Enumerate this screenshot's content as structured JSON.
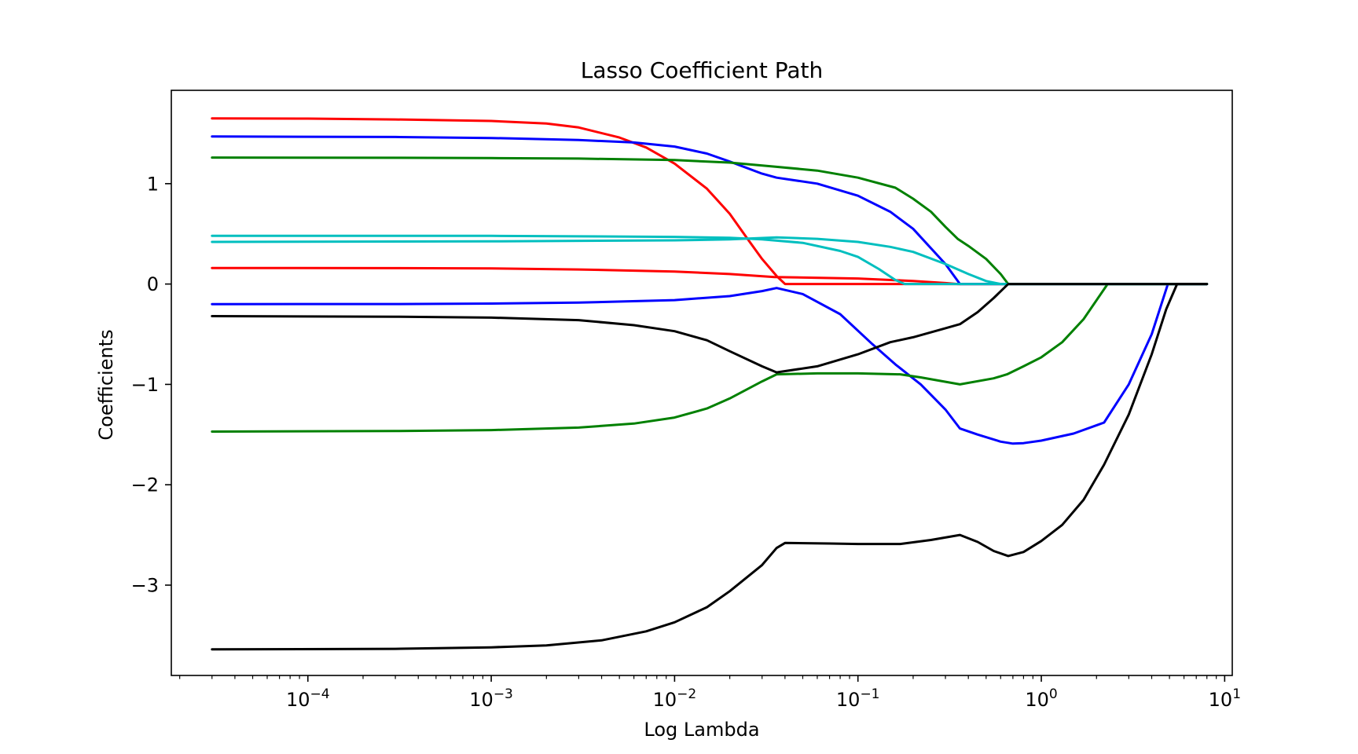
{
  "chart_data": {
    "type": "line",
    "title": "Lasso Coefficient Path",
    "xlabel": "Log Lambda",
    "ylabel": "Coefficients",
    "xscale": "log",
    "xlim": [
      1.8e-05,
      11
    ],
    "ylim": [
      -3.9,
      1.93
    ],
    "grid": false,
    "legend": "none",
    "xticks": [
      {
        "value": 0.0001,
        "base": "10",
        "exp": "−4"
      },
      {
        "value": 0.001,
        "base": "10",
        "exp": "−3"
      },
      {
        "value": 0.01,
        "base": "10",
        "exp": "−2"
      },
      {
        "value": 0.1,
        "base": "10",
        "exp": "−1"
      },
      {
        "value": 1,
        "base": "10",
        "exp": "0"
      },
      {
        "value": 10,
        "base": "10",
        "exp": "1"
      }
    ],
    "yticks": [
      {
        "value": 1,
        "label": "1"
      },
      {
        "value": 0,
        "label": "0"
      },
      {
        "value": -1,
        "label": "−1"
      },
      {
        "value": -2,
        "label": "−2"
      },
      {
        "value": -3,
        "label": "−3"
      }
    ],
    "series": [
      {
        "color": "#ff0000",
        "points": [
          [
            3e-05,
            1.65
          ],
          [
            0.0001,
            1.648
          ],
          [
            0.0003,
            1.64
          ],
          [
            0.001,
            1.625
          ],
          [
            0.002,
            1.6
          ],
          [
            0.003,
            1.56
          ],
          [
            0.005,
            1.46
          ],
          [
            0.007,
            1.36
          ],
          [
            0.01,
            1.2
          ],
          [
            0.015,
            0.95
          ],
          [
            0.02,
            0.7
          ],
          [
            0.025,
            0.45
          ],
          [
            0.03,
            0.25
          ],
          [
            0.036,
            0.08
          ],
          [
            0.04,
            0
          ],
          [
            8,
            0
          ]
        ]
      },
      {
        "color": "#ff0000",
        "points": [
          [
            3e-05,
            0.16
          ],
          [
            0.0003,
            0.158
          ],
          [
            0.001,
            0.155
          ],
          [
            0.003,
            0.145
          ],
          [
            0.01,
            0.125
          ],
          [
            0.02,
            0.1
          ],
          [
            0.035,
            0.07
          ],
          [
            0.1,
            0.055
          ],
          [
            0.2,
            0.03
          ],
          [
            0.3,
            0.01
          ],
          [
            0.35,
            0
          ],
          [
            8,
            0
          ]
        ]
      },
      {
        "color": "#0000ff",
        "points": [
          [
            3e-05,
            1.47
          ],
          [
            0.0003,
            1.465
          ],
          [
            0.001,
            1.455
          ],
          [
            0.003,
            1.435
          ],
          [
            0.006,
            1.41
          ],
          [
            0.01,
            1.37
          ],
          [
            0.015,
            1.3
          ],
          [
            0.02,
            1.22
          ],
          [
            0.03,
            1.1
          ],
          [
            0.036,
            1.06
          ],
          [
            0.06,
            1.0
          ],
          [
            0.1,
            0.88
          ],
          [
            0.15,
            0.72
          ],
          [
            0.2,
            0.55
          ],
          [
            0.3,
            0.2
          ],
          [
            0.36,
            0
          ],
          [
            8,
            0
          ]
        ]
      },
      {
        "color": "#0000ff",
        "points": [
          [
            3e-05,
            -0.2
          ],
          [
            0.0003,
            -0.199
          ],
          [
            0.001,
            -0.195
          ],
          [
            0.003,
            -0.185
          ],
          [
            0.01,
            -0.16
          ],
          [
            0.02,
            -0.12
          ],
          [
            0.03,
            -0.07
          ],
          [
            0.036,
            -0.04
          ],
          [
            0.05,
            -0.1
          ],
          [
            0.08,
            -0.3
          ],
          [
            0.12,
            -0.6
          ],
          [
            0.16,
            -0.8
          ],
          [
            0.22,
            -1.0
          ],
          [
            0.3,
            -1.25
          ],
          [
            0.36,
            -1.44
          ],
          [
            0.45,
            -1.5
          ],
          [
            0.6,
            -1.57
          ],
          [
            0.7,
            -1.59
          ],
          [
            0.8,
            -1.585
          ],
          [
            1,
            -1.56
          ],
          [
            1.5,
            -1.49
          ],
          [
            2.2,
            -1.38
          ],
          [
            3,
            -1.0
          ],
          [
            4,
            -0.5
          ],
          [
            4.9,
            0
          ],
          [
            8,
            0
          ]
        ]
      },
      {
        "color": "#008000",
        "points": [
          [
            3e-05,
            1.26
          ],
          [
            0.0003,
            1.258
          ],
          [
            0.001,
            1.255
          ],
          [
            0.003,
            1.25
          ],
          [
            0.01,
            1.235
          ],
          [
            0.02,
            1.21
          ],
          [
            0.035,
            1.17
          ],
          [
            0.06,
            1.13
          ],
          [
            0.1,
            1.06
          ],
          [
            0.16,
            0.96
          ],
          [
            0.2,
            0.85
          ],
          [
            0.25,
            0.72
          ],
          [
            0.3,
            0.57
          ],
          [
            0.35,
            0.45
          ],
          [
            0.4,
            0.38
          ],
          [
            0.5,
            0.25
          ],
          [
            0.6,
            0.1
          ],
          [
            0.66,
            0
          ],
          [
            8,
            0
          ]
        ]
      },
      {
        "color": "#008000",
        "points": [
          [
            3e-05,
            -1.47
          ],
          [
            0.0003,
            -1.465
          ],
          [
            0.001,
            -1.455
          ],
          [
            0.003,
            -1.43
          ],
          [
            0.006,
            -1.39
          ],
          [
            0.01,
            -1.33
          ],
          [
            0.015,
            -1.24
          ],
          [
            0.02,
            -1.14
          ],
          [
            0.03,
            -0.97
          ],
          [
            0.036,
            -0.9
          ],
          [
            0.06,
            -0.89
          ],
          [
            0.1,
            -0.89
          ],
          [
            0.17,
            -0.9
          ],
          [
            0.22,
            -0.93
          ],
          [
            0.36,
            -1.0
          ],
          [
            0.55,
            -0.94
          ],
          [
            0.65,
            -0.9
          ],
          [
            0.8,
            -0.82
          ],
          [
            1,
            -0.73
          ],
          [
            1.3,
            -0.58
          ],
          [
            1.7,
            -0.35
          ],
          [
            2.3,
            0
          ],
          [
            8,
            0
          ]
        ]
      },
      {
        "color": "#00bfbf",
        "points": [
          [
            3e-05,
            0.48
          ],
          [
            0.001,
            0.48
          ],
          [
            0.003,
            0.475
          ],
          [
            0.01,
            0.47
          ],
          [
            0.02,
            0.46
          ],
          [
            0.03,
            0.445
          ],
          [
            0.05,
            0.41
          ],
          [
            0.08,
            0.33
          ],
          [
            0.1,
            0.27
          ],
          [
            0.13,
            0.15
          ],
          [
            0.16,
            0.04
          ],
          [
            0.18,
            0
          ],
          [
            8,
            0
          ]
        ]
      },
      {
        "color": "#00bfbf",
        "points": [
          [
            3e-05,
            0.42
          ],
          [
            0.001,
            0.425
          ],
          [
            0.01,
            0.435
          ],
          [
            0.02,
            0.445
          ],
          [
            0.036,
            0.465
          ],
          [
            0.06,
            0.45
          ],
          [
            0.1,
            0.42
          ],
          [
            0.15,
            0.37
          ],
          [
            0.2,
            0.32
          ],
          [
            0.3,
            0.2
          ],
          [
            0.4,
            0.1
          ],
          [
            0.5,
            0.03
          ],
          [
            0.6,
            0
          ],
          [
            8,
            0
          ]
        ]
      },
      {
        "color": "#000000",
        "points": [
          [
            3e-05,
            -0.32
          ],
          [
            0.0003,
            -0.325
          ],
          [
            0.001,
            -0.335
          ],
          [
            0.003,
            -0.36
          ],
          [
            0.006,
            -0.41
          ],
          [
            0.01,
            -0.47
          ],
          [
            0.015,
            -0.56
          ],
          [
            0.02,
            -0.67
          ],
          [
            0.03,
            -0.82
          ],
          [
            0.036,
            -0.88
          ],
          [
            0.06,
            -0.82
          ],
          [
            0.1,
            -0.7
          ],
          [
            0.15,
            -0.58
          ],
          [
            0.2,
            -0.53
          ],
          [
            0.3,
            -0.44
          ],
          [
            0.36,
            -0.4
          ],
          [
            0.45,
            -0.28
          ],
          [
            0.55,
            -0.14
          ],
          [
            0.66,
            0
          ],
          [
            8,
            0
          ]
        ]
      },
      {
        "color": "#000000",
        "points": [
          [
            3e-05,
            -3.64
          ],
          [
            0.0003,
            -3.635
          ],
          [
            0.001,
            -3.62
          ],
          [
            0.002,
            -3.6
          ],
          [
            0.004,
            -3.55
          ],
          [
            0.007,
            -3.46
          ],
          [
            0.01,
            -3.37
          ],
          [
            0.015,
            -3.22
          ],
          [
            0.02,
            -3.06
          ],
          [
            0.03,
            -2.8
          ],
          [
            0.036,
            -2.63
          ],
          [
            0.04,
            -2.58
          ],
          [
            0.07,
            -2.585
          ],
          [
            0.1,
            -2.59
          ],
          [
            0.17,
            -2.59
          ],
          [
            0.25,
            -2.55
          ],
          [
            0.36,
            -2.5
          ],
          [
            0.45,
            -2.57
          ],
          [
            0.55,
            -2.66
          ],
          [
            0.66,
            -2.71
          ],
          [
            0.8,
            -2.67
          ],
          [
            1,
            -2.56
          ],
          [
            1.3,
            -2.4
          ],
          [
            1.7,
            -2.15
          ],
          [
            2.2,
            -1.8
          ],
          [
            3,
            -1.3
          ],
          [
            4,
            -0.7
          ],
          [
            4.8,
            -0.25
          ],
          [
            5.5,
            0
          ],
          [
            8,
            0
          ]
        ]
      }
    ]
  }
}
